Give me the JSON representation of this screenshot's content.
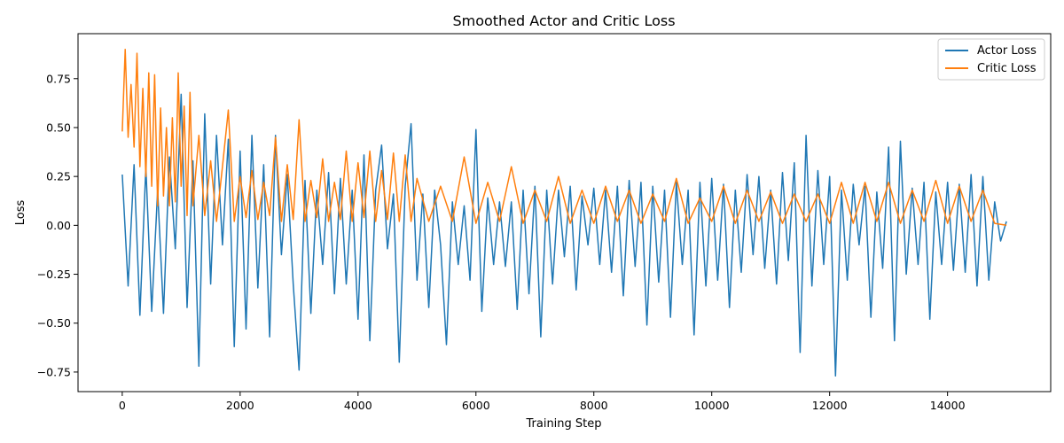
{
  "chart_data": {
    "type": "line",
    "title": "Smoothed Actor and Critic Loss",
    "xlabel": "Training Step",
    "ylabel": "Loss",
    "xlim": [
      -750,
      15750
    ],
    "ylim": [
      -0.85,
      0.98
    ],
    "xticks": [
      0,
      2000,
      4000,
      6000,
      8000,
      10000,
      12000,
      14000
    ],
    "xtick_labels": [
      "0",
      "2000",
      "4000",
      "6000",
      "8000",
      "10000",
      "12000",
      "14000"
    ],
    "yticks": [
      -0.75,
      -0.5,
      -0.25,
      0.0,
      0.25,
      0.5,
      0.75
    ],
    "ytick_labels": [
      "−0.75",
      "−0.50",
      "−0.25",
      "0.00",
      "0.25",
      "0.50",
      "0.75"
    ],
    "grid": false,
    "legend_position": "top-right",
    "series": [
      {
        "name": "Actor Loss",
        "color": "#1f77b4",
        "x": [
          0,
          100,
          200,
          300,
          400,
          500,
          600,
          700,
          800,
          900,
          1000,
          1100,
          1200,
          1300,
          1400,
          1500,
          1600,
          1700,
          1800,
          1900,
          2000,
          2100,
          2200,
          2300,
          2400,
          2500,
          2600,
          2700,
          2800,
          2900,
          3000,
          3100,
          3200,
          3300,
          3400,
          3500,
          3600,
          3700,
          3800,
          3900,
          4000,
          4100,
          4200,
          4300,
          4400,
          4500,
          4600,
          4700,
          4800,
          4900,
          5000,
          5100,
          5200,
          5300,
          5400,
          5500,
          5600,
          5700,
          5800,
          5900,
          6000,
          6100,
          6200,
          6300,
          6400,
          6500,
          6600,
          6700,
          6800,
          6900,
          7000,
          7100,
          7200,
          7300,
          7400,
          7500,
          7600,
          7700,
          7800,
          7900,
          8000,
          8100,
          8200,
          8300,
          8400,
          8500,
          8600,
          8700,
          8800,
          8900,
          9000,
          9100,
          9200,
          9300,
          9400,
          9500,
          9600,
          9700,
          9800,
          9900,
          10000,
          10100,
          10200,
          10300,
          10400,
          10500,
          10600,
          10700,
          10800,
          10900,
          11000,
          11100,
          11200,
          11300,
          11400,
          11500,
          11600,
          11700,
          11800,
          11900,
          12000,
          12100,
          12200,
          12300,
          12400,
          12500,
          12600,
          12700,
          12800,
          12900,
          13000,
          13100,
          13200,
          13300,
          13400,
          13500,
          13600,
          13700,
          13800,
          13900,
          14000,
          14100,
          14200,
          14300,
          14400,
          14500,
          14600,
          14700,
          14800,
          14900,
          15000
        ],
        "y": [
          0.26,
          -0.31,
          0.31,
          -0.46,
          0.3,
          -0.44,
          0.18,
          -0.45,
          0.35,
          -0.12,
          0.67,
          -0.42,
          0.33,
          -0.72,
          0.57,
          -0.3,
          0.46,
          -0.1,
          0.44,
          -0.62,
          0.38,
          -0.53,
          0.46,
          -0.32,
          0.31,
          -0.57,
          0.46,
          -0.15,
          0.26,
          -0.3,
          -0.74,
          0.23,
          -0.45,
          0.18,
          -0.2,
          0.27,
          -0.35,
          0.24,
          -0.3,
          0.18,
          -0.48,
          0.36,
          -0.59,
          0.18,
          0.41,
          -0.12,
          0.16,
          -0.7,
          0.2,
          0.52,
          -0.28,
          0.16,
          -0.42,
          0.18,
          -0.1,
          -0.61,
          0.12,
          -0.2,
          0.1,
          -0.28,
          0.49,
          -0.44,
          0.14,
          -0.2,
          0.12,
          -0.21,
          0.12,
          -0.43,
          0.18,
          -0.35,
          0.2,
          -0.57,
          0.18,
          -0.3,
          0.18,
          -0.16,
          0.2,
          -0.33,
          0.15,
          -0.1,
          0.19,
          -0.2,
          0.18,
          -0.24,
          0.2,
          -0.36,
          0.23,
          -0.21,
          0.22,
          -0.51,
          0.2,
          -0.29,
          0.18,
          -0.47,
          0.22,
          -0.2,
          0.18,
          -0.56,
          0.22,
          -0.31,
          0.24,
          -0.28,
          0.21,
          -0.42,
          0.18,
          -0.24,
          0.26,
          -0.15,
          0.25,
          -0.22,
          0.18,
          -0.3,
          0.27,
          -0.18,
          0.32,
          -0.65,
          0.46,
          -0.31,
          0.28,
          -0.2,
          0.25,
          -0.77,
          0.18,
          -0.28,
          0.21,
          -0.1,
          0.2,
          -0.47,
          0.17,
          -0.22,
          0.4,
          -0.59,
          0.43,
          -0.25,
          0.19,
          -0.2,
          0.22,
          -0.48,
          0.17,
          -0.2,
          0.22,
          -0.23,
          0.21,
          -0.24,
          0.26,
          -0.31,
          0.25,
          -0.28,
          0.12,
          -0.08,
          0.02
        ]
      },
      {
        "name": "Critic Loss",
        "color": "#ff7f0e",
        "x": [
          0,
          50,
          100,
          150,
          200,
          250,
          300,
          350,
          400,
          450,
          500,
          550,
          600,
          650,
          700,
          750,
          800,
          850,
          900,
          950,
          1000,
          1050,
          1100,
          1150,
          1200,
          1300,
          1400,
          1500,
          1600,
          1700,
          1800,
          1900,
          2000,
          2100,
          2200,
          2300,
          2400,
          2500,
          2600,
          2700,
          2800,
          2900,
          3000,
          3100,
          3200,
          3300,
          3400,
          3500,
          3600,
          3700,
          3800,
          3900,
          4000,
          4100,
          4200,
          4300,
          4400,
          4500,
          4600,
          4700,
          4800,
          4900,
          5000,
          5200,
          5400,
          5600,
          5800,
          6000,
          6200,
          6400,
          6600,
          6800,
          7000,
          7200,
          7400,
          7600,
          7800,
          8000,
          8200,
          8400,
          8600,
          8800,
          9000,
          9200,
          9400,
          9600,
          9800,
          10000,
          10200,
          10400,
          10600,
          10800,
          11000,
          11200,
          11400,
          11600,
          11800,
          12000,
          12200,
          12400,
          12600,
          12800,
          13000,
          13200,
          13400,
          13600,
          13800,
          14000,
          14200,
          14400,
          14600,
          14800,
          15000
        ],
        "y": [
          0.48,
          0.9,
          0.45,
          0.72,
          0.4,
          0.88,
          0.3,
          0.7,
          0.25,
          0.78,
          0.2,
          0.77,
          0.1,
          0.6,
          0.15,
          0.5,
          0.1,
          0.55,
          0.12,
          0.78,
          0.2,
          0.61,
          0.05,
          0.68,
          0.1,
          0.46,
          0.05,
          0.33,
          0.02,
          0.3,
          0.59,
          0.02,
          0.25,
          0.04,
          0.28,
          0.03,
          0.22,
          0.05,
          0.45,
          0.02,
          0.31,
          0.03,
          0.54,
          0.02,
          0.23,
          0.04,
          0.34,
          0.02,
          0.22,
          0.03,
          0.38,
          0.02,
          0.32,
          0.04,
          0.38,
          0.02,
          0.28,
          0.03,
          0.37,
          0.02,
          0.36,
          0.02,
          0.24,
          0.02,
          0.2,
          0.02,
          0.35,
          0.01,
          0.22,
          0.02,
          0.3,
          0.01,
          0.18,
          0.02,
          0.25,
          0.01,
          0.18,
          0.01,
          0.2,
          0.02,
          0.18,
          0.01,
          0.16,
          0.02,
          0.24,
          0.01,
          0.14,
          0.02,
          0.2,
          0.01,
          0.18,
          0.02,
          0.17,
          0.01,
          0.16,
          0.02,
          0.16,
          0.01,
          0.22,
          0.01,
          0.22,
          0.02,
          0.22,
          0.01,
          0.18,
          0.02,
          0.23,
          0.01,
          0.2,
          0.02,
          0.18,
          0.01,
          0.0
        ]
      }
    ]
  }
}
